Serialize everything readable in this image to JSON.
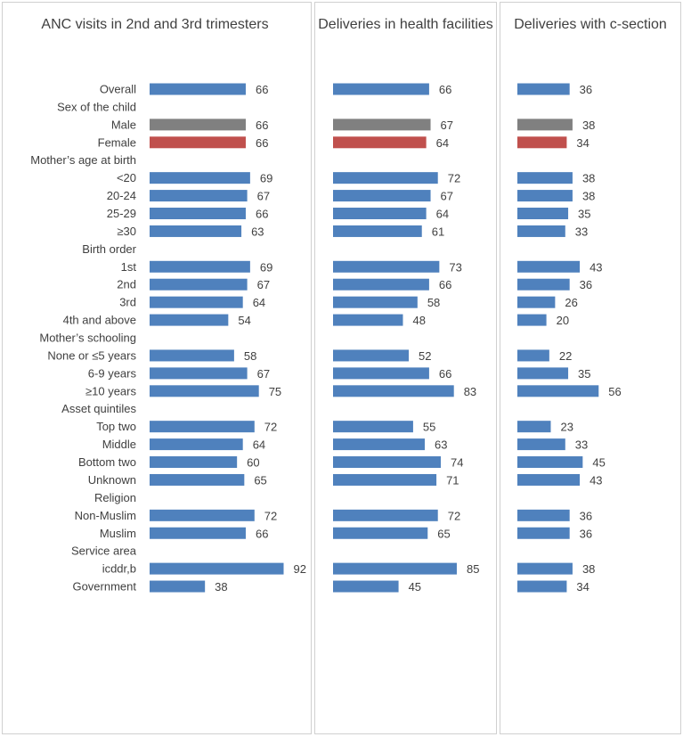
{
  "colors": {
    "default": "#4f81bd",
    "male": "#808080",
    "female": "#c0504d"
  },
  "rows": [
    {
      "kind": "item",
      "label": "Overall",
      "color": "default"
    },
    {
      "kind": "header",
      "label": "Sex of the child"
    },
    {
      "kind": "item",
      "label": "Male",
      "color": "male"
    },
    {
      "kind": "item",
      "label": "Female",
      "color": "female"
    },
    {
      "kind": "header",
      "label": "Mother’s age at birth"
    },
    {
      "kind": "item",
      "label": "<20",
      "color": "default"
    },
    {
      "kind": "item",
      "label": "20-24",
      "color": "default"
    },
    {
      "kind": "item",
      "label": "25-29",
      "color": "default"
    },
    {
      "kind": "item",
      "label": "≥30",
      "color": "default"
    },
    {
      "kind": "header",
      "label": "Birth order"
    },
    {
      "kind": "item",
      "label": "1st",
      "color": "default"
    },
    {
      "kind": "item",
      "label": "2nd",
      "color": "default"
    },
    {
      "kind": "item",
      "label": "3rd",
      "color": "default"
    },
    {
      "kind": "item",
      "label": "4th and above",
      "color": "default"
    },
    {
      "kind": "header",
      "label": "Mother’s schooling"
    },
    {
      "kind": "item",
      "label": "None or ≤5 years",
      "color": "default"
    },
    {
      "kind": "item",
      "label": "6-9 years",
      "color": "default"
    },
    {
      "kind": "item",
      "label": "≥10 years",
      "color": "default"
    },
    {
      "kind": "header",
      "label": "Asset quintiles"
    },
    {
      "kind": "item",
      "label": "Top two",
      "color": "default"
    },
    {
      "kind": "item",
      "label": "Middle",
      "color": "default"
    },
    {
      "kind": "item",
      "label": "Bottom two",
      "color": "default"
    },
    {
      "kind": "item",
      "label": "Unknown",
      "color": "default"
    },
    {
      "kind": "header",
      "label": "Religion"
    },
    {
      "kind": "item",
      "label": "Non-Muslim",
      "color": "default"
    },
    {
      "kind": "item",
      "label": "Muslim",
      "color": "default"
    },
    {
      "kind": "header",
      "label": "Service area"
    },
    {
      "kind": "item",
      "label": "icddr,b",
      "color": "default"
    },
    {
      "kind": "item",
      "label": "Government",
      "color": "default"
    }
  ],
  "chart_data": [
    {
      "type": "bar",
      "orientation": "horizontal",
      "title": "ANC visits in 2nd and 3rd trimesters",
      "xlim": [
        0,
        100
      ],
      "categories": [
        "Overall",
        "Male",
        "Female",
        "<20",
        "20-24",
        "25-29",
        "≥30",
        "1st",
        "2nd",
        "3rd",
        "4th and above",
        "None or ≤5 years",
        "6-9 years",
        "≥10 years",
        "Top two",
        "Middle",
        "Bottom two",
        "Unknown",
        "Non-Muslim",
        "Muslim",
        "icddr,b",
        "Government"
      ],
      "values": [
        66,
        66,
        66,
        69,
        67,
        66,
        63,
        69,
        67,
        64,
        54,
        58,
        67,
        75,
        72,
        64,
        60,
        65,
        72,
        66,
        92,
        38
      ]
    },
    {
      "type": "bar",
      "orientation": "horizontal",
      "title": "Deliveries in health facilities",
      "xlim": [
        0,
        100
      ],
      "categories": [
        "Overall",
        "Male",
        "Female",
        "<20",
        "20-24",
        "25-29",
        "≥30",
        "1st",
        "2nd",
        "3rd",
        "4th and above",
        "None or ≤5 years",
        "6-9 years",
        "≥10 years",
        "Top two",
        "Middle",
        "Bottom two",
        "Unknown",
        "Non-Muslim",
        "Muslim",
        "icddr,b",
        "Government"
      ],
      "values": [
        66,
        67,
        64,
        72,
        67,
        64,
        61,
        73,
        66,
        58,
        48,
        52,
        66,
        83,
        55,
        63,
        74,
        71,
        72,
        65,
        85,
        45
      ]
    },
    {
      "type": "bar",
      "orientation": "horizontal",
      "title": "Deliveries with c-section",
      "xlim": [
        0,
        60
      ],
      "categories": [
        "Overall",
        "Male",
        "Female",
        "<20",
        "20-24",
        "25-29",
        "≥30",
        "1st",
        "2nd",
        "3rd",
        "4th and above",
        "None or ≤5 years",
        "6-9 years",
        "≥10 years",
        "Top two",
        "Middle",
        "Bottom two",
        "Unknown",
        "Non-Muslim",
        "Muslim",
        "icddr,b",
        "Government"
      ],
      "values": [
        36,
        38,
        34,
        38,
        38,
        35,
        33,
        43,
        36,
        26,
        20,
        22,
        35,
        56,
        23,
        33,
        45,
        43,
        36,
        36,
        38,
        34
      ]
    }
  ]
}
